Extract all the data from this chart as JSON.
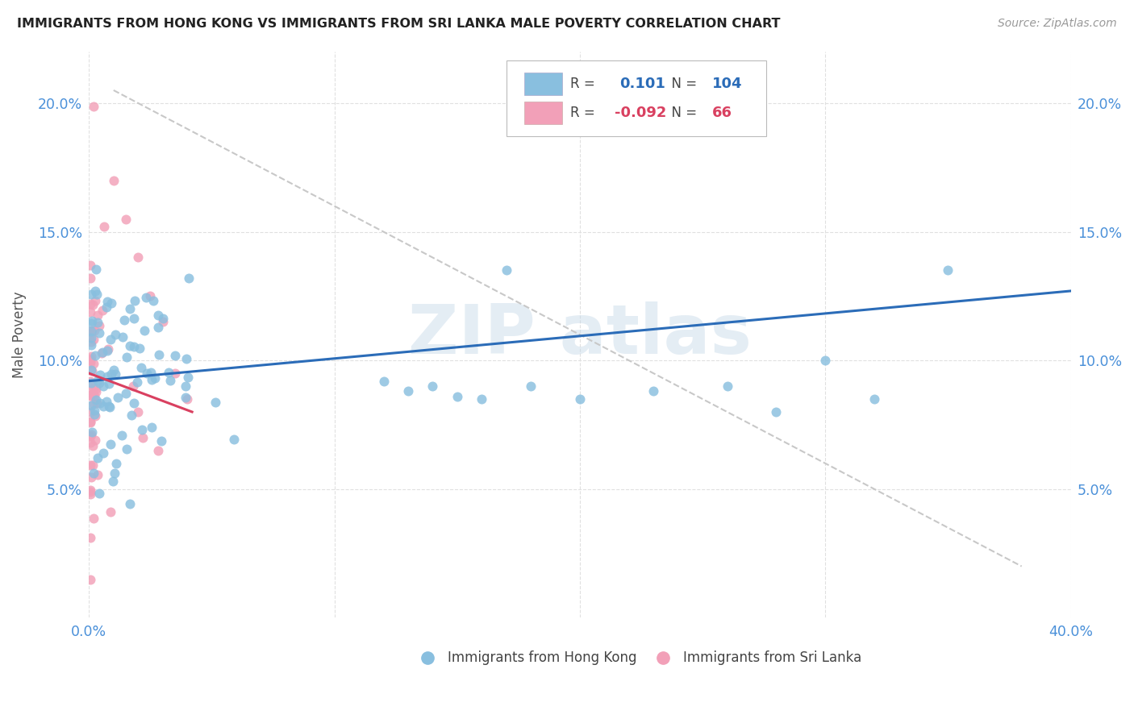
{
  "title": "IMMIGRANTS FROM HONG KONG VS IMMIGRANTS FROM SRI LANKA MALE POVERTY CORRELATION CHART",
  "source": "Source: ZipAtlas.com",
  "ylabel": "Male Poverty",
  "ytick_labels": [
    "5.0%",
    "10.0%",
    "15.0%",
    "20.0%"
  ],
  "ytick_values": [
    0.05,
    0.1,
    0.15,
    0.2
  ],
  "xlim": [
    0.0,
    0.4
  ],
  "ylim": [
    0.0,
    0.22
  ],
  "color_hk": "#89bfdf",
  "color_sl": "#f2a0b8",
  "color_hk_line": "#2b6cb8",
  "color_sl_line": "#d94060",
  "color_diag": "#c8c8c8",
  "legend_r_hk": "0.101",
  "legend_n_hk": "104",
  "legend_r_sl": "-0.092",
  "legend_n_sl": "66"
}
